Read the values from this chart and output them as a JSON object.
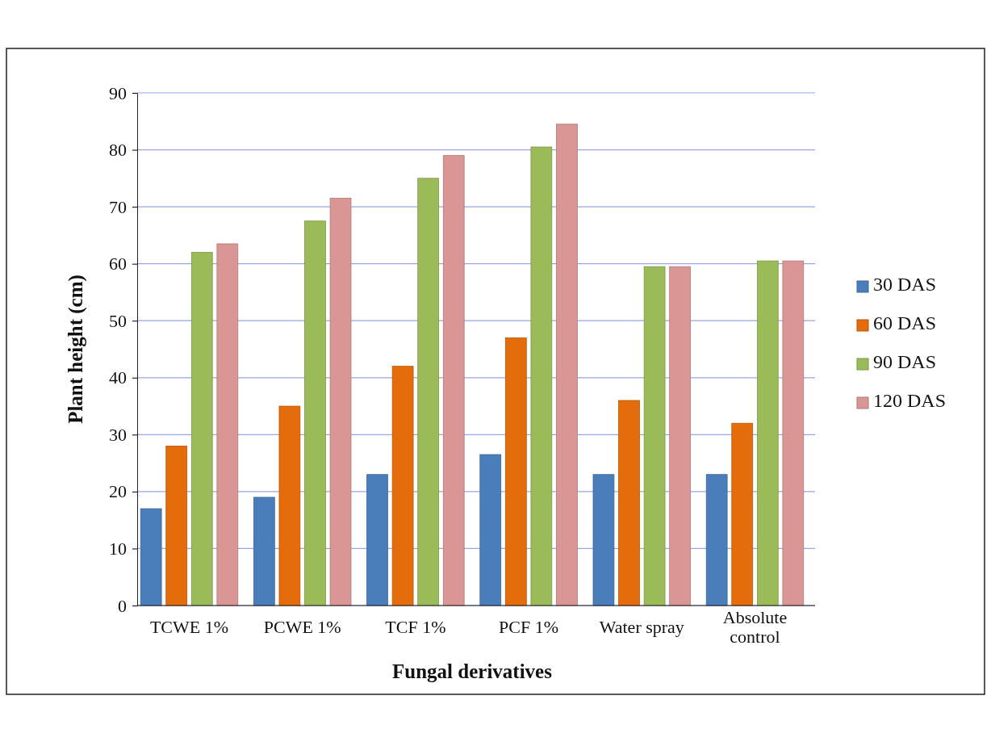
{
  "chart_data": {
    "type": "bar",
    "xlabel": "Fungal derivatives",
    "ylabel": "Plant height (cm)",
    "categories": [
      "TCWE 1%",
      "PCWE 1%",
      "TCF 1%",
      "PCF 1%",
      "Water spray",
      "Absolute control"
    ],
    "series": [
      {
        "name": "30 DAS",
        "color": "#4a7ebb",
        "values": [
          17,
          19,
          23,
          26.5,
          23,
          23
        ]
      },
      {
        "name": "60 DAS",
        "color": "#e46c0a",
        "values": [
          28,
          35,
          42,
          47,
          36,
          32
        ]
      },
      {
        "name": "90 DAS",
        "color": "#9bbb59",
        "values": [
          62,
          67.5,
          75,
          80.5,
          59.5,
          60.5
        ]
      },
      {
        "name": "120 DAS",
        "color": "#d99694",
        "values": [
          63.5,
          71.5,
          79,
          84.5,
          59.5,
          60.5
        ]
      }
    ],
    "ylim": [
      0,
      90
    ],
    "yticks": [
      0,
      10,
      20,
      30,
      40,
      50,
      60,
      70,
      80,
      90
    ],
    "grid": "y",
    "legend": "right"
  }
}
